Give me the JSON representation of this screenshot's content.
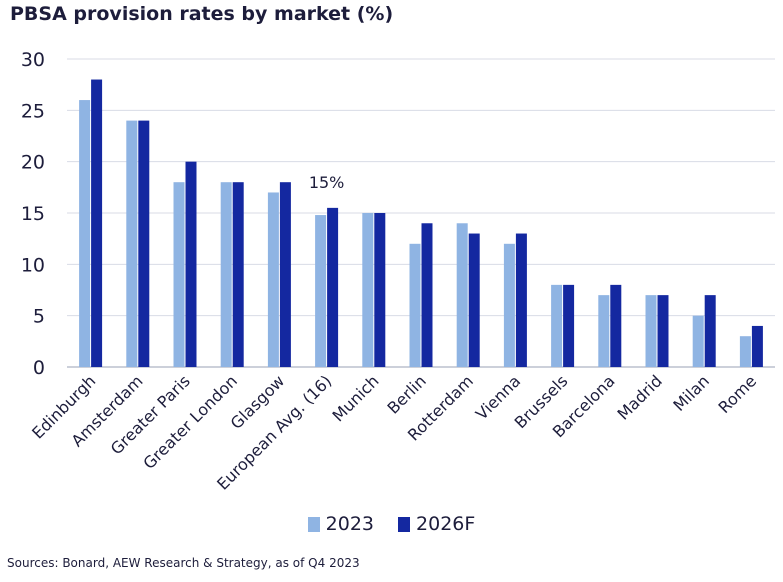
{
  "chart_data": {
    "type": "bar",
    "title": "PBSA provision rates by market (%)",
    "categories": [
      "Edinburgh",
      "Amsterdam",
      "Greater Paris",
      "Greater London",
      "Glasgow",
      "European Avg. (16)",
      "Munich",
      "Berlin",
      "Rotterdam",
      "Vienna",
      "Brussels",
      "Barcelona",
      "Madrid",
      "Milan",
      "Rome"
    ],
    "series": [
      {
        "name": "2023",
        "color": "#8fb4e3",
        "values": [
          26,
          24,
          18,
          18,
          17,
          14.8,
          15,
          12,
          14,
          12,
          8,
          7,
          7,
          5,
          3
        ]
      },
      {
        "name": "2026F",
        "color": "#1428a0",
        "values": [
          28,
          24,
          20,
          18,
          18,
          15.5,
          15,
          14,
          13,
          13,
          8,
          8,
          7,
          7,
          4
        ]
      }
    ],
    "ylim": [
      0,
      30
    ],
    "yticks": [
      0,
      5,
      10,
      15,
      20,
      25,
      30
    ],
    "grid": true,
    "legend_position": "bottom",
    "annotations": [
      {
        "category": "European Avg. (16)",
        "text": "15%"
      }
    ]
  },
  "source": "Sources: Bonard, AEW Research & Strategy, as of Q4 2023"
}
